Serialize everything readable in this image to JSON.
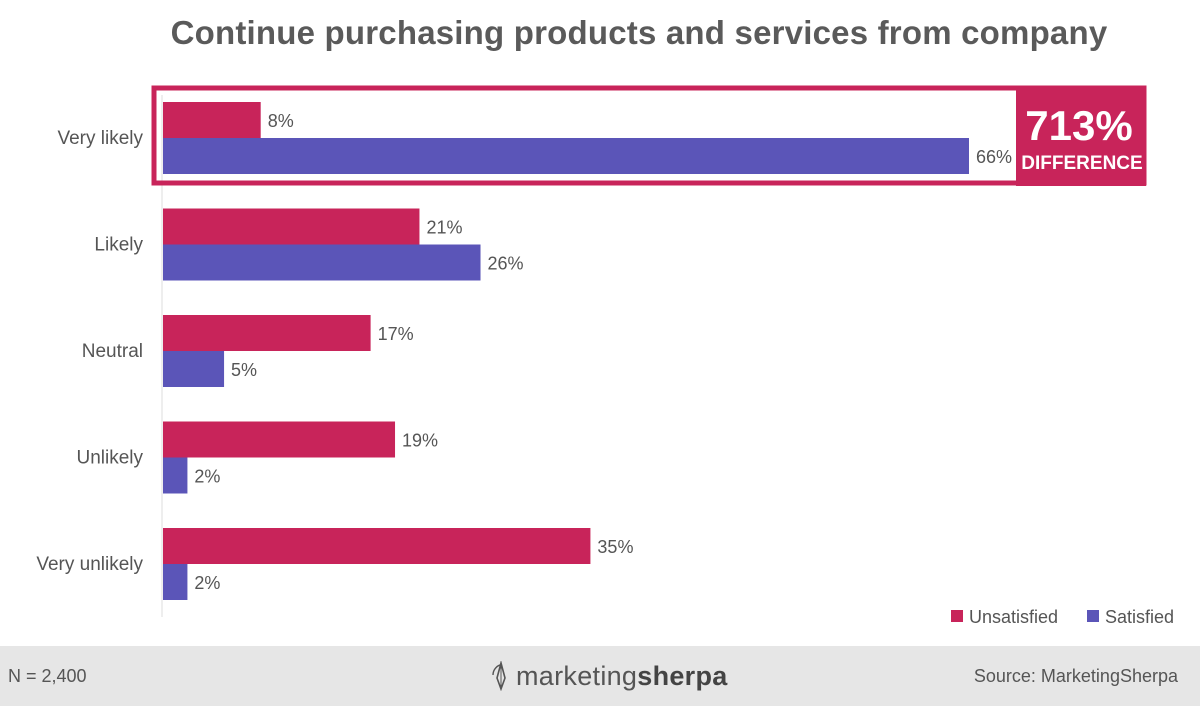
{
  "chart_data": {
    "type": "bar",
    "orientation": "horizontal",
    "title": "Continue purchasing products and services from company",
    "categories": [
      "Very likely",
      "Likely",
      "Neutral",
      "Unlikely",
      "Very unlikely"
    ],
    "series": [
      {
        "name": "Unsatisfied",
        "color": "#c8245a",
        "values": [
          8,
          21,
          17,
          19,
          35
        ],
        "labels": [
          "8%",
          "21%",
          "17%",
          "19%",
          "35%"
        ]
      },
      {
        "name": "Satisfied",
        "color": "#5b55b8",
        "values": [
          66,
          26,
          5,
          2,
          2
        ],
        "labels": [
          "66%",
          "26%",
          "5%",
          "2%",
          "2%"
        ]
      }
    ],
    "xlim": [
      0,
      66
    ],
    "grid": false,
    "legend_position": "bottom-right",
    "callout": {
      "category": "Very likely",
      "value_label": "713%",
      "text": "DIFFERENCE",
      "color": "#c8245a"
    }
  },
  "footer": {
    "sample_size": "N = 2,400",
    "logo_prefix": "marketing",
    "logo_suffix": "sherpa",
    "source": "Source: MarketingSherpa"
  }
}
